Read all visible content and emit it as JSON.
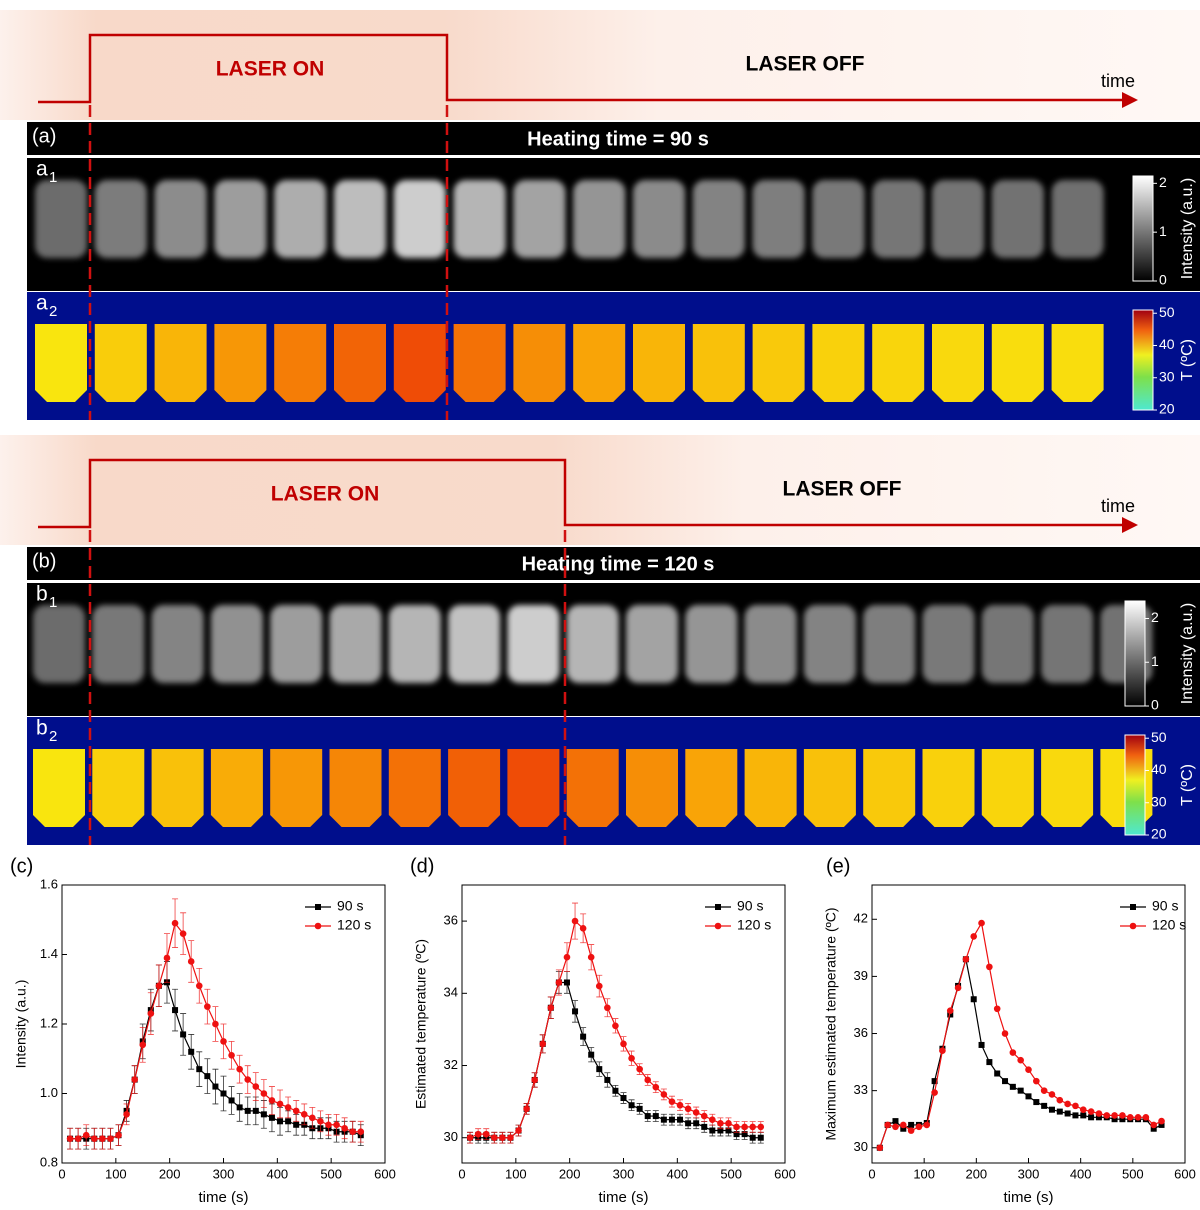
{
  "panels": [
    {
      "label": "(a)",
      "pulse_on": "LASER ON",
      "pulse_off": "LASER OFF",
      "time": "time",
      "heading": "Heating time = 90 s",
      "rows": [
        {
          "letter": "a",
          "sub": "1",
          "colorbar": {
            "title": "Intensity (a.u.)",
            "range": [
              0,
              2.15
            ],
            "ticks": [
              0,
              1,
              2
            ]
          }
        },
        {
          "letter": "a",
          "sub": "2",
          "colorbar": {
            "title": "T (ºC)",
            "range": [
              20,
              51
            ],
            "ticks": [
              20,
              30,
              40,
              50
            ]
          }
        }
      ]
    },
    {
      "label": "(b)",
      "pulse_on": "LASER ON",
      "pulse_off": "LASER OFF",
      "time": "time",
      "heading": "Heating time = 120 s",
      "rows": [
        {
          "letter": "b",
          "sub": "1",
          "colorbar": {
            "title": "Intensity (a.u.)",
            "range": [
              0,
              2.4
            ],
            "ticks": [
              0,
              1,
              2
            ]
          }
        },
        {
          "letter": "b",
          "sub": "2",
          "colorbar": {
            "title": "T (ºC)",
            "range": [
              20,
              51
            ],
            "ticks": [
              20,
              30,
              40,
              50
            ]
          }
        }
      ]
    }
  ],
  "chart_data": [
    {
      "type": "line",
      "panel_label": "(c)",
      "x_label": "time (s)",
      "y_label": "Intensity (a.u.)",
      "legend": "upper right",
      "x": [
        15,
        30,
        45,
        60,
        75,
        90,
        105,
        120,
        135,
        150,
        165,
        180,
        195,
        210,
        225,
        240,
        255,
        270,
        285,
        300,
        315,
        330,
        345,
        360,
        375,
        390,
        405,
        420,
        435,
        450,
        465,
        480,
        495,
        510,
        525,
        540,
        555
      ],
      "xlim": [
        0,
        600
      ],
      "xticks": [
        0,
        100,
        200,
        300,
        400,
        500,
        600
      ],
      "ylim": [
        0.8,
        1.6
      ],
      "yticks": [
        0.8,
        {
          "value": 1,
          "label": "1.0"
        },
        1.2,
        1.4,
        1.6
      ],
      "series": [
        {
          "name": "90 s",
          "color": "#000000",
          "marker": "square",
          "values": [
            0.87,
            0.87,
            0.87,
            0.87,
            0.87,
            0.87,
            0.88,
            0.95,
            1.04,
            1.15,
            1.24,
            1.31,
            1.32,
            1.24,
            1.17,
            1.12,
            1.07,
            1.05,
            1.02,
            1.0,
            0.98,
            0.96,
            0.95,
            0.95,
            0.94,
            0.93,
            0.92,
            0.92,
            0.91,
            0.91,
            0.9,
            0.9,
            0.9,
            0.89,
            0.89,
            0.89,
            0.88
          ],
          "errors": [
            0.03,
            0.03,
            0.03,
            0.03,
            0.03,
            0.03,
            0.03,
            0.03,
            0.04,
            0.05,
            0.06,
            0.06,
            0.06,
            0.06,
            0.06,
            0.05,
            0.05,
            0.05,
            0.05,
            0.05,
            0.04,
            0.04,
            0.04,
            0.04,
            0.04,
            0.04,
            0.04,
            0.03,
            0.03,
            0.03,
            0.03,
            0.03,
            0.03,
            0.03,
            0.03,
            0.03,
            0.03
          ]
        },
        {
          "name": "120 s",
          "color": "#ee1111",
          "marker": "circle",
          "values": [
            0.87,
            0.87,
            0.88,
            0.87,
            0.87,
            0.87,
            0.88,
            0.94,
            1.04,
            1.14,
            1.23,
            1.31,
            1.39,
            1.49,
            1.46,
            1.38,
            1.31,
            1.25,
            1.2,
            1.15,
            1.11,
            1.07,
            1.04,
            1.02,
            1.0,
            0.98,
            0.97,
            0.96,
            0.95,
            0.94,
            0.93,
            0.92,
            0.91,
            0.91,
            0.9,
            0.89,
            0.89
          ],
          "errors": [
            0.03,
            0.03,
            0.03,
            0.03,
            0.03,
            0.03,
            0.03,
            0.03,
            0.04,
            0.05,
            0.06,
            0.06,
            0.07,
            0.07,
            0.06,
            0.06,
            0.05,
            0.05,
            0.05,
            0.05,
            0.04,
            0.04,
            0.04,
            0.04,
            0.04,
            0.04,
            0.04,
            0.03,
            0.03,
            0.03,
            0.03,
            0.03,
            0.03,
            0.03,
            0.03,
            0.03,
            0.03
          ]
        }
      ]
    },
    {
      "type": "line",
      "panel_label": "(d)",
      "x_label": "time (s)",
      "y_label": "Estimated temperature (ºC)",
      "legend": "upper right",
      "x": [
        15,
        30,
        45,
        60,
        75,
        90,
        105,
        120,
        135,
        150,
        165,
        180,
        195,
        210,
        225,
        240,
        255,
        270,
        285,
        300,
        315,
        330,
        345,
        360,
        375,
        390,
        405,
        420,
        435,
        450,
        465,
        480,
        495,
        510,
        525,
        540,
        555
      ],
      "xlim": [
        0,
        600
      ],
      "xticks": [
        0,
        100,
        200,
        300,
        400,
        500,
        600
      ],
      "ylim": [
        29.3,
        37
      ],
      "yticks": [
        30,
        32,
        34,
        36
      ],
      "series": [
        {
          "name": "90 s",
          "color": "#000000",
          "marker": "square",
          "values": [
            30,
            30,
            30,
            30,
            30,
            30,
            30.2,
            30.8,
            31.6,
            32.6,
            33.6,
            34.3,
            34.3,
            33.5,
            32.8,
            32.3,
            31.9,
            31.6,
            31.3,
            31.1,
            30.9,
            30.8,
            30.6,
            30.6,
            30.5,
            30.5,
            30.5,
            30.4,
            30.4,
            30.3,
            30.2,
            30.2,
            30.2,
            30.1,
            30.1,
            30,
            30
          ],
          "errors": [
            0.15,
            0.15,
            0.15,
            0.15,
            0.15,
            0.15,
            0.15,
            0.15,
            0.2,
            0.25,
            0.3,
            0.3,
            0.3,
            0.3,
            0.25,
            0.2,
            0.2,
            0.2,
            0.15,
            0.15,
            0.15,
            0.15,
            0.15,
            0.15,
            0.15,
            0.15,
            0.15,
            0.15,
            0.15,
            0.15,
            0.15,
            0.15,
            0.15,
            0.15,
            0.15,
            0.15,
            0.15
          ]
        },
        {
          "name": "120 s",
          "color": "#ee1111",
          "marker": "circle",
          "values": [
            30,
            30.1,
            30.1,
            30,
            30,
            30,
            30.2,
            30.8,
            31.6,
            32.6,
            33.6,
            34.3,
            35,
            36,
            35.8,
            35,
            34.2,
            33.6,
            33.1,
            32.6,
            32.2,
            31.9,
            31.6,
            31.4,
            31.2,
            31,
            30.9,
            30.8,
            30.7,
            30.6,
            30.5,
            30.4,
            30.4,
            30.3,
            30.3,
            30.3,
            30.3
          ],
          "errors": [
            0.15,
            0.15,
            0.15,
            0.15,
            0.15,
            0.15,
            0.15,
            0.15,
            0.2,
            0.25,
            0.3,
            0.35,
            0.4,
            0.5,
            0.4,
            0.35,
            0.3,
            0.25,
            0.2,
            0.2,
            0.2,
            0.15,
            0.15,
            0.15,
            0.15,
            0.15,
            0.15,
            0.15,
            0.15,
            0.15,
            0.15,
            0.15,
            0.15,
            0.15,
            0.15,
            0.15,
            0.15
          ]
        }
      ]
    },
    {
      "type": "line",
      "panel_label": "(e)",
      "x_label": "time (s)",
      "y_label": "Maximum estimated temperature (ºC)",
      "legend": "upper right",
      "x": [
        15,
        30,
        45,
        60,
        75,
        90,
        105,
        120,
        135,
        150,
        165,
        180,
        195,
        210,
        225,
        240,
        255,
        270,
        285,
        300,
        315,
        330,
        345,
        360,
        375,
        390,
        405,
        420,
        435,
        450,
        465,
        480,
        495,
        510,
        525,
        540,
        555
      ],
      "xlim": [
        0,
        600
      ],
      "xticks": [
        0,
        100,
        200,
        300,
        400,
        500,
        600
      ],
      "ylim": [
        29.2,
        43.8
      ],
      "yticks": [
        30,
        33,
        36,
        39,
        42
      ],
      "series": [
        {
          "name": "90 s",
          "color": "#000000",
          "marker": "square",
          "values": [
            30,
            31.2,
            31.4,
            31,
            31.2,
            31.2,
            31.3,
            33.5,
            35.2,
            37,
            38.5,
            39.9,
            37.8,
            35.4,
            34.5,
            33.9,
            33.5,
            33.2,
            33,
            32.7,
            32.4,
            32.2,
            32,
            31.9,
            31.8,
            31.7,
            31.7,
            31.6,
            31.6,
            31.6,
            31.5,
            31.5,
            31.5,
            31.5,
            31.5,
            31,
            31.2
          ]
        },
        {
          "name": "120 s",
          "color": "#ee1111",
          "marker": "circle",
          "values": [
            30,
            31.2,
            31.1,
            31.2,
            30.9,
            31.1,
            31.2,
            32.9,
            35.1,
            37.2,
            38.4,
            39.9,
            41.1,
            41.8,
            39.5,
            37.3,
            36,
            35,
            34.6,
            34.1,
            33.5,
            33,
            32.8,
            32.5,
            32.3,
            32.2,
            32,
            31.9,
            31.8,
            31.7,
            31.7,
            31.7,
            31.6,
            31.6,
            31.6,
            31.2,
            31.4
          ]
        }
      ]
    }
  ]
}
